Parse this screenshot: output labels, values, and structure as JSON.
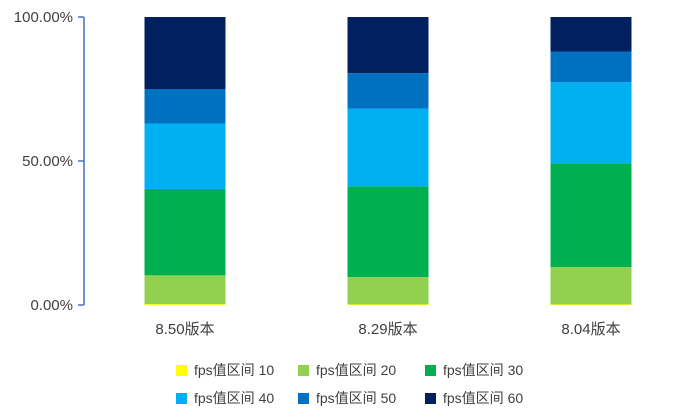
{
  "chart_data": {
    "type": "bar",
    "stacked": true,
    "normalized_percent": true,
    "categories": [
      "8.50版本",
      "8.29版本",
      "8.04版本"
    ],
    "series": [
      {
        "name": "fps值区间 10",
        "color": "#FFFF00",
        "values": [
          0.3,
          0.2,
          0.2
        ]
      },
      {
        "name": "fps值区间 20",
        "color": "#92D050",
        "values": [
          10.0,
          9.5,
          13.0
        ]
      },
      {
        "name": "fps值区间 30",
        "color": "#00B050",
        "values": [
          30.0,
          31.5,
          36.0
        ]
      },
      {
        "name": "fps值区间 40",
        "color": "#00B0F0",
        "values": [
          22.7,
          27.0,
          28.2
        ]
      },
      {
        "name": "fps值区间 50",
        "color": "#0070C0",
        "values": [
          12.0,
          12.3,
          10.6
        ]
      },
      {
        "name": "fps值区间 60",
        "color": "#002060",
        "values": [
          25.0,
          19.5,
          12.0
        ]
      }
    ],
    "yticks": [
      "0.00%",
      "50.00%",
      "100.00%"
    ],
    "ylim": [
      0,
      100
    ],
    "legend_position": "bottom",
    "grid": false
  }
}
